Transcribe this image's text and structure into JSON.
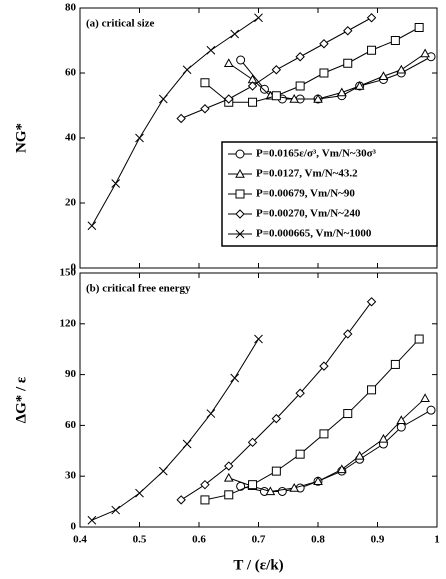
{
  "chart_data": [
    {
      "type": "line",
      "annotation": "(a) critical size",
      "ylabel": "NG*",
      "xlim": [
        0.4,
        1.0
      ],
      "xticks": [
        0.4,
        0.5,
        0.6,
        0.7,
        0.8,
        0.9,
        1
      ],
      "ylim": [
        0,
        80
      ],
      "yticks": [
        0,
        20,
        40,
        60,
        80
      ],
      "legend": "lower right",
      "series": [
        {
          "name": "P=0.0165ε/σ³, Vm/N~30σ³",
          "marker": "circle",
          "color": "#000000",
          "x": [
            0.67,
            0.71,
            0.74,
            0.77,
            0.8,
            0.84,
            0.87,
            0.91,
            0.94,
            0.99
          ],
          "values": [
            64,
            55,
            52,
            52,
            52,
            53,
            56,
            58,
            60,
            65
          ]
        },
        {
          "name": "P=0.0127, Vm/N~43.2",
          "marker": "triangle",
          "color": "#000000",
          "x": [
            0.65,
            0.69,
            0.72,
            0.76,
            0.8,
            0.84,
            0.87,
            0.91,
            0.94,
            0.98
          ],
          "values": [
            63,
            58,
            53,
            52,
            52,
            54,
            56,
            59,
            61,
            66
          ]
        },
        {
          "name": "P=0.00679, Vm/N~90",
          "marker": "square",
          "color": "#000000",
          "x": [
            0.61,
            0.65,
            0.69,
            0.73,
            0.77,
            0.81,
            0.85,
            0.89,
            0.93,
            0.97
          ],
          "values": [
            57,
            51,
            51,
            53,
            56,
            60,
            63,
            67,
            70,
            74
          ]
        },
        {
          "name": "P=0.00270, Vm/N~240",
          "marker": "diamond",
          "color": "#000000",
          "x": [
            0.57,
            0.61,
            0.65,
            0.69,
            0.73,
            0.77,
            0.81,
            0.85,
            0.89
          ],
          "values": [
            46,
            49,
            52,
            56,
            61,
            65,
            69,
            73,
            77
          ]
        },
        {
          "name": "P=0.000665, Vm/N~1000",
          "marker": "cross",
          "color": "#000000",
          "x": [
            0.42,
            0.46,
            0.5,
            0.54,
            0.58,
            0.62,
            0.66,
            0.7
          ],
          "values": [
            13,
            26,
            40,
            52,
            61,
            67,
            72,
            77
          ]
        }
      ]
    },
    {
      "type": "line",
      "annotation": "(b) critical free energy",
      "ylabel": "ΔG* / ε",
      "xlabel": "T / (ε/k)",
      "xlim": [
        0.4,
        1.0
      ],
      "xticks": [
        0.4,
        0.5,
        0.6,
        0.7,
        0.8,
        0.9,
        1
      ],
      "ylim": [
        0,
        150
      ],
      "yticks": [
        0,
        30,
        60,
        90,
        120,
        150
      ],
      "series": [
        {
          "marker": "circle",
          "color": "#000000",
          "x": [
            0.67,
            0.71,
            0.74,
            0.77,
            0.8,
            0.84,
            0.87,
            0.91,
            0.94,
            0.99
          ],
          "values": [
            24,
            21,
            21,
            23,
            27,
            33,
            40,
            49,
            59,
            69
          ]
        },
        {
          "marker": "triangle",
          "color": "#000000",
          "x": [
            0.65,
            0.69,
            0.72,
            0.76,
            0.8,
            0.84,
            0.87,
            0.91,
            0.94,
            0.98
          ],
          "values": [
            29,
            24,
            21,
            23,
            27,
            34,
            42,
            52,
            63,
            76
          ]
        },
        {
          "marker": "square",
          "color": "#000000",
          "x": [
            0.61,
            0.65,
            0.69,
            0.73,
            0.77,
            0.81,
            0.85,
            0.89,
            0.93,
            0.97
          ],
          "values": [
            16,
            19,
            25,
            33,
            43,
            55,
            67,
            81,
            96,
            111
          ]
        },
        {
          "marker": "diamond",
          "color": "#000000",
          "x": [
            0.57,
            0.61,
            0.65,
            0.69,
            0.73,
            0.77,
            0.81,
            0.85,
            0.89
          ],
          "values": [
            16,
            25,
            36,
            50,
            64,
            79,
            95,
            114,
            133
          ]
        },
        {
          "marker": "cross",
          "color": "#000000",
          "x": [
            0.42,
            0.46,
            0.5,
            0.54,
            0.58,
            0.62,
            0.66,
            0.7
          ],
          "values": [
            4,
            10,
            20,
            33,
            49,
            67,
            88,
            111
          ]
        }
      ]
    }
  ]
}
